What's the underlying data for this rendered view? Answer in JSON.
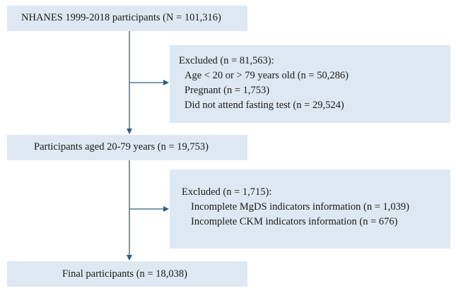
{
  "flow": {
    "start": {
      "label": "NHANES 1999-2018 participants (N = 101,316)"
    },
    "exclusion_1": {
      "title": "Excluded (n = 81,563):",
      "items": [
        "Age < 20 or > 79 years old (n = 50,286)",
        "Pregnant (n = 1,753)",
        "Did not attend fasting test (n = 29,524)"
      ]
    },
    "middle": {
      "label": "Participants aged 20-79 years (n = 19,753)"
    },
    "exclusion_2": {
      "title": "Excluded (n = 1,715):",
      "items": [
        "Incomplete MgDS indicators information (n = 1,039)",
        "Incomplete CKM indicators information (n = 676)"
      ]
    },
    "final": {
      "label": "Final participants (n = 18,038)"
    }
  },
  "colors": {
    "box_fill": "#dde8f2",
    "arrow": "#2b5f7f",
    "text": "#1a1a1a"
  }
}
